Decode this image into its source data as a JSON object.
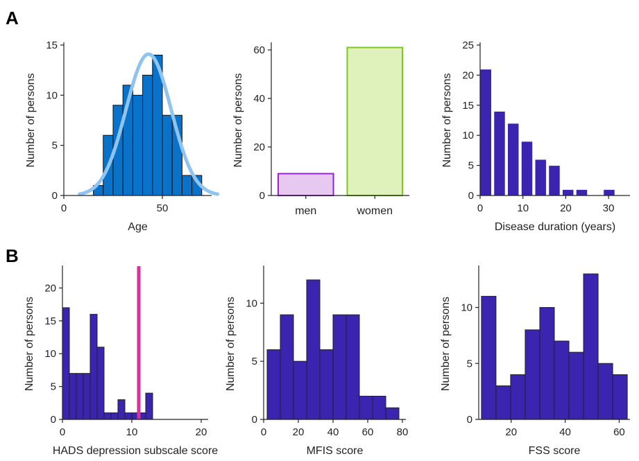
{
  "panels": [
    {
      "letter": "A"
    },
    {
      "letter": "B"
    }
  ],
  "chart_data": [
    {
      "type": "bar",
      "xlabel": "Age",
      "ylabel": "Number of persons",
      "xlim": [
        0,
        75
      ],
      "ylim": [
        0,
        15
      ],
      "xticks": [
        0,
        50
      ],
      "yticks": [
        0,
        5,
        10,
        15
      ],
      "bins": [
        {
          "x0": 15,
          "x1": 20,
          "v": 1
        },
        {
          "x0": 20,
          "x1": 25,
          "v": 6
        },
        {
          "x0": 25,
          "x1": 30,
          "v": 9
        },
        {
          "x0": 30,
          "x1": 35,
          "v": 11
        },
        {
          "x0": 35,
          "x1": 40,
          "v": 10
        },
        {
          "x0": 40,
          "x1": 45,
          "v": 12
        },
        {
          "x0": 45,
          "x1": 50,
          "v": 14
        },
        {
          "x0": 50,
          "x1": 55,
          "v": 8
        },
        {
          "x0": 55,
          "x1": 60,
          "v": 8
        },
        {
          "x0": 60,
          "x1": 65,
          "v": 2
        },
        {
          "x0": 65,
          "x1": 70,
          "v": 2
        }
      ],
      "fill": "#0a72c8",
      "edge": "#111111",
      "fit_curve": {
        "type": "normal",
        "mean": 43,
        "sd": 11.5,
        "peak": 14.1,
        "x_range": [
          8,
          78
        ],
        "color": "#90c4f0"
      }
    },
    {
      "type": "bar",
      "xlabel": "",
      "ylabel": "Number of persons",
      "ylim": [
        0,
        62
      ],
      "yticks": [
        0,
        20,
        40,
        60
      ],
      "categories": [
        "men",
        "women"
      ],
      "values": [
        9,
        61
      ],
      "fills": [
        "#e6c8f0",
        "#e0f2bc"
      ],
      "edges": [
        "#9b1fd0",
        "#7cc81e"
      ]
    },
    {
      "type": "bar",
      "xlabel": "Disease duration (years)",
      "ylabel": "Number of persons",
      "xlim": [
        0,
        35
      ],
      "ylim": [
        0,
        25
      ],
      "xticks": [
        0,
        10,
        20,
        30
      ],
      "yticks": [
        0,
        5,
        10,
        15,
        20,
        25
      ],
      "bins": [
        {
          "x0": 0,
          "x1": 2.67,
          "v": 21
        },
        {
          "x0": 3.2,
          "x1": 5.87,
          "v": 14
        },
        {
          "x0": 6.4,
          "x1": 9.07,
          "v": 12
        },
        {
          "x0": 9.6,
          "x1": 12.27,
          "v": 9
        },
        {
          "x0": 12.8,
          "x1": 15.47,
          "v": 6
        },
        {
          "x0": 16.0,
          "x1": 18.67,
          "v": 5
        },
        {
          "x0": 19.2,
          "x1": 21.87,
          "v": 1
        },
        {
          "x0": 22.4,
          "x1": 25.07,
          "v": 1
        },
        {
          "x0": 28.8,
          "x1": 31.47,
          "v": 1
        }
      ],
      "fill": "#3a24b0",
      "edge": "#ffffff"
    },
    {
      "type": "bar",
      "xlabel": "HADS depression subscale score",
      "ylabel": "Number of persons",
      "xlim": [
        0,
        21
      ],
      "ylim": [
        0,
        23
      ],
      "xticks": [
        0,
        10,
        20
      ],
      "yticks": [
        0,
        5,
        10,
        15,
        20
      ],
      "bins": [
        {
          "x0": 0,
          "x1": 1,
          "v": 17
        },
        {
          "x0": 1,
          "x1": 2,
          "v": 7
        },
        {
          "x0": 2,
          "x1": 3,
          "v": 7
        },
        {
          "x0": 3,
          "x1": 4,
          "v": 7
        },
        {
          "x0": 4,
          "x1": 5,
          "v": 16
        },
        {
          "x0": 5,
          "x1": 6,
          "v": 11
        },
        {
          "x0": 6,
          "x1": 7,
          "v": 1
        },
        {
          "x0": 7,
          "x1": 8,
          "v": 1
        },
        {
          "x0": 8,
          "x1": 9,
          "v": 3
        },
        {
          "x0": 9,
          "x1": 10,
          "v": 1
        },
        {
          "x0": 10,
          "x1": 11,
          "v": 1
        },
        {
          "x0": 11,
          "x1": 12,
          "v": 1
        },
        {
          "x0": 12,
          "x1": 13,
          "v": 4
        }
      ],
      "fill": "#3a24b0",
      "edge": "#222222",
      "vline": {
        "x": 11,
        "color": "#d4359a"
      }
    },
    {
      "type": "bar",
      "xlabel": "MFIS score",
      "ylabel": "Number of persons",
      "xlim": [
        0,
        82
      ],
      "ylim": [
        0,
        13
      ],
      "xticks": [
        0,
        20,
        40,
        60,
        80
      ],
      "yticks": [
        0,
        5,
        10
      ],
      "bins": [
        {
          "x0": 2,
          "x1": 9.6,
          "v": 6
        },
        {
          "x0": 9.6,
          "x1": 17.2,
          "v": 9
        },
        {
          "x0": 17.2,
          "x1": 24.8,
          "v": 5
        },
        {
          "x0": 24.8,
          "x1": 32.4,
          "v": 12
        },
        {
          "x0": 32.4,
          "x1": 40.0,
          "v": 6
        },
        {
          "x0": 40.0,
          "x1": 47.6,
          "v": 9
        },
        {
          "x0": 47.6,
          "x1": 55.2,
          "v": 9
        },
        {
          "x0": 55.2,
          "x1": 62.8,
          "v": 2
        },
        {
          "x0": 62.8,
          "x1": 70.4,
          "v": 2
        },
        {
          "x0": 70.4,
          "x1": 78.0,
          "v": 1
        }
      ],
      "fill": "#3a24b0",
      "edge": "#222222"
    },
    {
      "type": "bar",
      "xlabel": "FSS score",
      "ylabel": "Number of persons",
      "xlim": [
        8,
        64
      ],
      "ylim": [
        0,
        13.5
      ],
      "xticks": [
        20,
        40,
        60
      ],
      "yticks": [
        0,
        5,
        10
      ],
      "bins": [
        {
          "x0": 9,
          "x1": 14.4,
          "v": 11
        },
        {
          "x0": 14.4,
          "x1": 19.8,
          "v": 3
        },
        {
          "x0": 19.8,
          "x1": 25.2,
          "v": 4
        },
        {
          "x0": 25.2,
          "x1": 30.6,
          "v": 8
        },
        {
          "x0": 30.6,
          "x1": 36.0,
          "v": 10
        },
        {
          "x0": 36.0,
          "x1": 41.4,
          "v": 7
        },
        {
          "x0": 41.4,
          "x1": 46.8,
          "v": 6
        },
        {
          "x0": 46.8,
          "x1": 52.2,
          "v": 13
        },
        {
          "x0": 52.2,
          "x1": 57.6,
          "v": 5
        },
        {
          "x0": 57.6,
          "x1": 63.0,
          "v": 4
        }
      ],
      "fill": "#3a24b0",
      "edge": "#222222"
    }
  ]
}
